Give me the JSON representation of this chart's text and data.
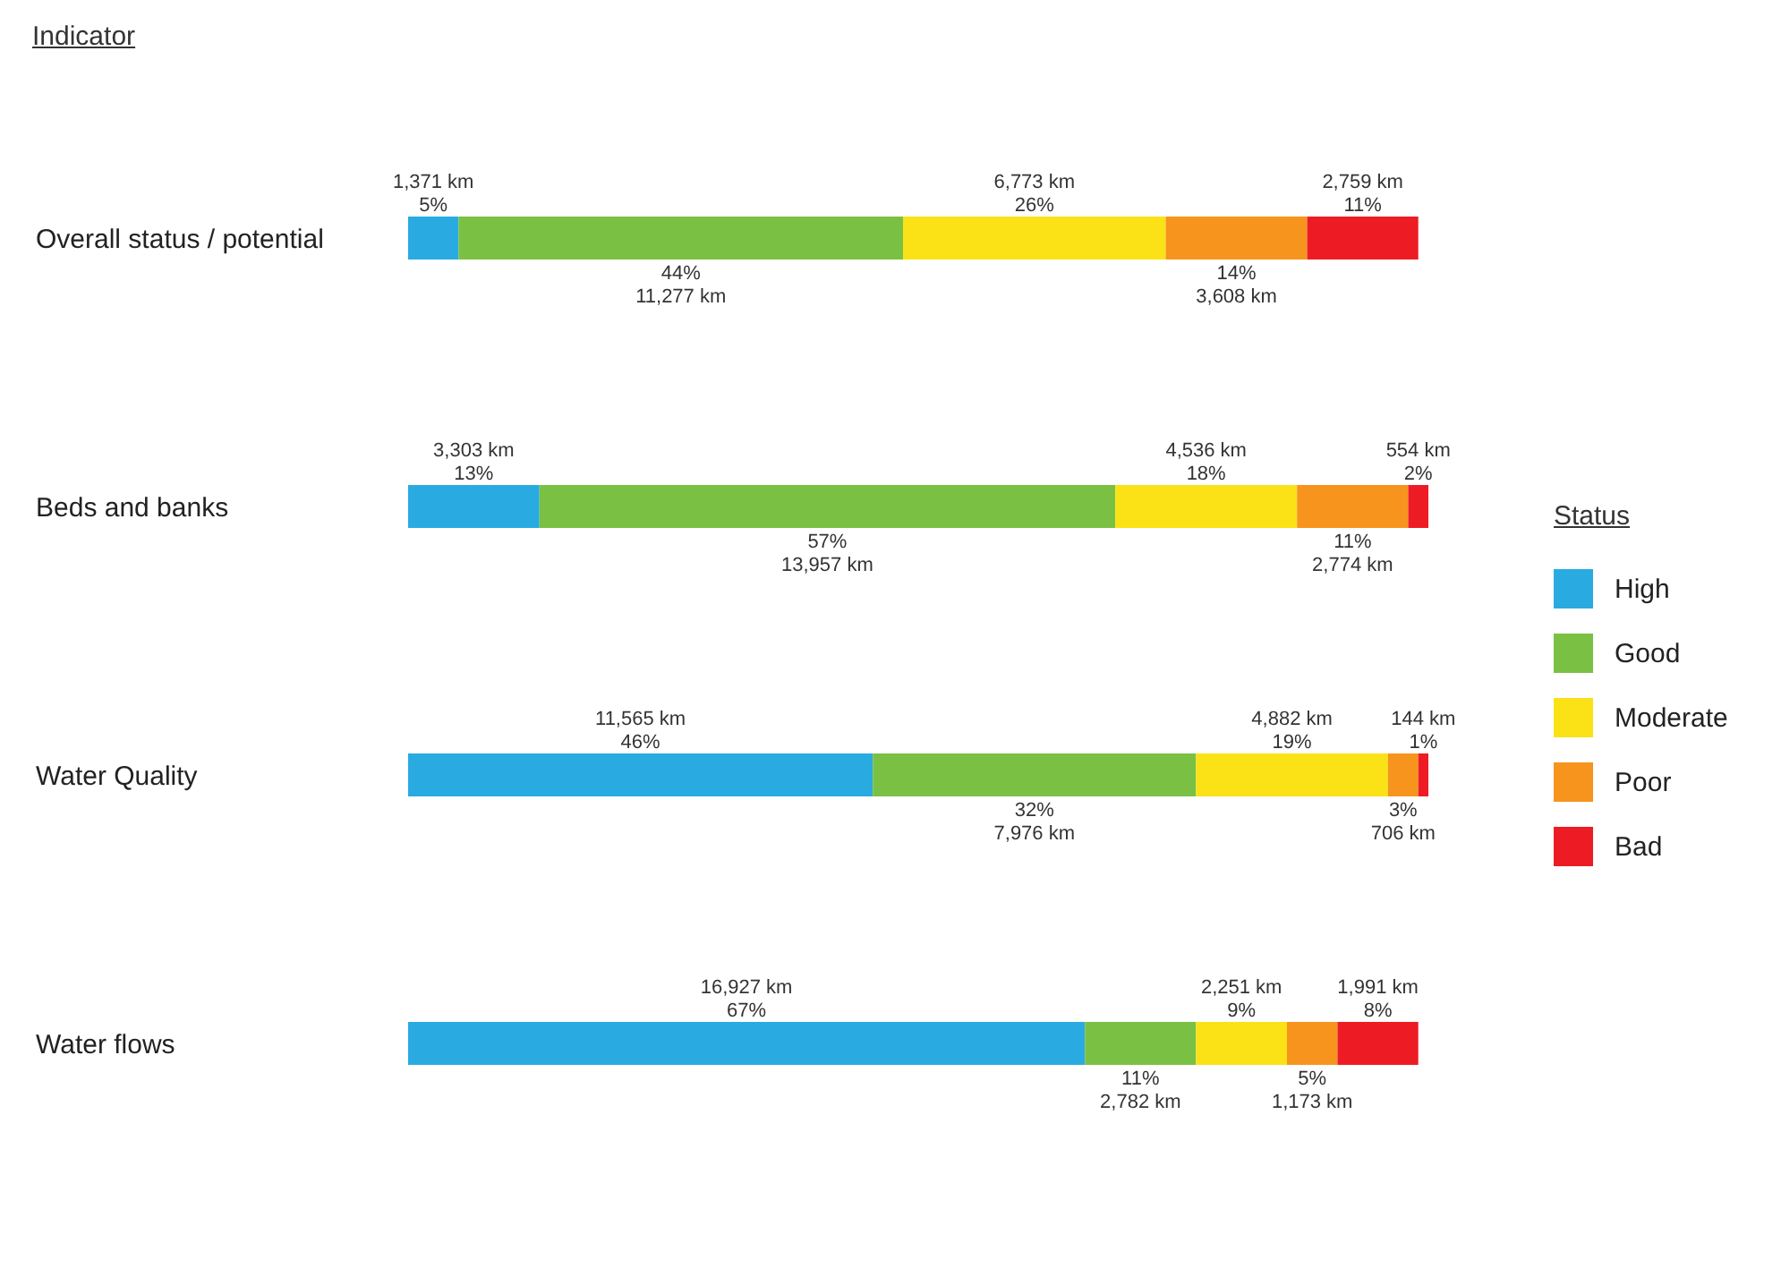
{
  "chart_data": {
    "type": "bar",
    "orientation": "horizontal",
    "stacked": true,
    "ylabel": "Indicator",
    "legend_title": "Status",
    "legend": "right",
    "categories": [
      "Overall status / potential",
      "Beds and banks",
      "Water Quality",
      "Water flows"
    ],
    "series": [
      {
        "name": "High",
        "color": "#29abe2",
        "values": [
          5,
          13,
          46,
          67
        ],
        "value_labels": [
          "5%",
          "13%",
          "46%",
          "67%"
        ]
      },
      {
        "name": "Good",
        "color": "#7ac143",
        "values": [
          44,
          57,
          32,
          11
        ],
        "value_labels": [
          "44%",
          "57%",
          "32%",
          "11%"
        ]
      },
      {
        "name": "Moderate",
        "color": "#fbe216",
        "values": [
          26,
          18,
          19,
          9
        ],
        "value_labels": [
          "26%",
          "18%",
          "19%",
          "9%"
        ]
      },
      {
        "name": "Poor",
        "color": "#f7941d",
        "values": [
          14,
          11,
          3,
          5
        ],
        "value_labels": [
          "14%",
          "11%",
          "3%",
          "5%"
        ]
      },
      {
        "name": "Bad",
        "color": "#ed1c24",
        "values": [
          11,
          2,
          1,
          8
        ],
        "value_labels": [
          "11%",
          "2%",
          "1%",
          "8%"
        ]
      }
    ],
    "annotations": [
      "1,371 km",
      "3,303 km",
      "11,565 km",
      "16,927 km",
      "11,277 km",
      "13,957 km",
      "7,976 km",
      "2,782 km",
      "6,773 km",
      "4,536 km",
      "4,882 km",
      "2,251 km",
      "3,608 km",
      "2,774 km",
      "706 km",
      "1,173 km",
      "2,759 km",
      "554 km",
      "144 km",
      "1,991 km"
    ]
  }
}
